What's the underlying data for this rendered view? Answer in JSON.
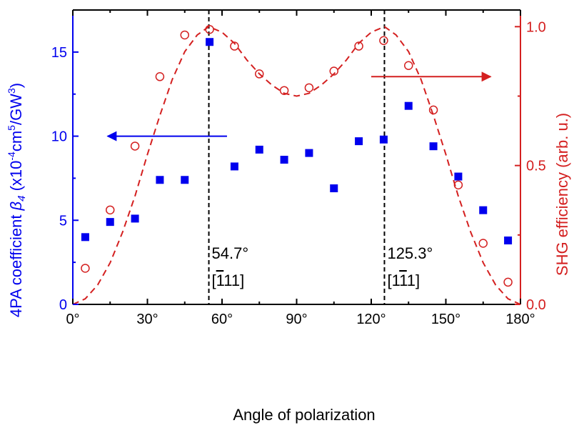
{
  "chart_data": {
    "type": "scatter",
    "xlabel": "Angle of polarization",
    "xlim": [
      0,
      180
    ],
    "x_ticks": [
      0,
      30,
      60,
      90,
      120,
      150,
      180
    ],
    "x_tick_labels": [
      "0°",
      "30°",
      "60°",
      "90°",
      "120°",
      "150°",
      "180°"
    ],
    "y_left": {
      "label_prefix": "4PA coefficient ",
      "label_symbol": "β",
      "label_symbol_sub": "4",
      "label_units_open": " (x10",
      "label_units_exp1": "-4",
      "label_units_mid": "cm",
      "label_units_exp2": "5",
      "label_units_mid2": "/GW",
      "label_units_exp3": "3",
      "label_units_close": ")",
      "lim": [
        0,
        17.5
      ],
      "ticks": [
        0,
        5,
        10,
        15
      ],
      "tick_labels": [
        "0",
        "5",
        "10",
        "15"
      ],
      "color": "#0000ee"
    },
    "y_right": {
      "label": "SHG efficiency (arb. u.)",
      "lim": [
        0,
        1.06
      ],
      "ticks": [
        0.0,
        0.5,
        1.0
      ],
      "tick_labels": [
        "0.0",
        "0.5",
        "1.0"
      ],
      "color": "#d42020"
    },
    "series": [
      {
        "marker": "filled-square",
        "axis": "left",
        "color": "#0000ee",
        "x": [
          5,
          15,
          25,
          35,
          45,
          55,
          65,
          75,
          85,
          95,
          105,
          115,
          125,
          135,
          145,
          155,
          165,
          175
        ],
        "y": [
          4.0,
          4.9,
          5.1,
          7.4,
          7.4,
          15.6,
          8.2,
          9.2,
          8.6,
          9.0,
          6.9,
          9.7,
          9.8,
          11.8,
          9.4,
          7.6,
          5.6,
          3.8
        ]
      },
      {
        "marker": "open-circle",
        "axis": "right",
        "color": "#d42020",
        "x": [
          5,
          15,
          25,
          35,
          45,
          55,
          65,
          75,
          85,
          95,
          105,
          115,
          125,
          135,
          145,
          155,
          165,
          175
        ],
        "y": [
          0.13,
          0.34,
          0.57,
          0.82,
          0.97,
          0.99,
          0.93,
          0.83,
          0.77,
          0.78,
          0.84,
          0.93,
          0.95,
          0.86,
          0.7,
          0.43,
          0.22,
          0.08
        ]
      },
      {
        "marker": "dashed-line",
        "axis": "right",
        "color": "#d42020",
        "x": [
          0,
          5,
          10,
          15,
          20,
          25,
          30,
          35,
          40,
          45,
          50,
          54.7,
          60,
          65,
          70,
          75,
          80,
          85,
          90,
          95,
          100,
          105,
          110,
          115,
          120,
          125.3,
          130,
          135,
          140,
          145,
          150,
          155,
          160,
          165,
          170,
          175,
          180
        ],
        "y": [
          0.0,
          0.02,
          0.07,
          0.15,
          0.26,
          0.39,
          0.54,
          0.68,
          0.81,
          0.91,
          0.97,
          1.0,
          0.98,
          0.94,
          0.88,
          0.83,
          0.79,
          0.76,
          0.75,
          0.76,
          0.79,
          0.83,
          0.88,
          0.94,
          0.98,
          1.0,
          0.97,
          0.91,
          0.81,
          0.68,
          0.54,
          0.39,
          0.26,
          0.15,
          0.07,
          0.02,
          0.0
        ]
      }
    ],
    "vlines": [
      {
        "x": 54.7,
        "label": "54.7°",
        "direction_prefix": "[",
        "direction_bar": "1",
        "direction_rest": "11]"
      },
      {
        "x": 125.3,
        "label": "125.3°",
        "direction_prefix": "[1",
        "direction_bar": "1",
        "direction_rest": "1]"
      }
    ],
    "arrows": [
      {
        "from_x": 62,
        "to_x": 14,
        "y_axis": "left",
        "y": 10.0,
        "color": "#0000ee"
      },
      {
        "from_x": 120,
        "to_x": 168,
        "y_axis": "right",
        "y": 0.82,
        "color": "#d42020"
      }
    ]
  }
}
